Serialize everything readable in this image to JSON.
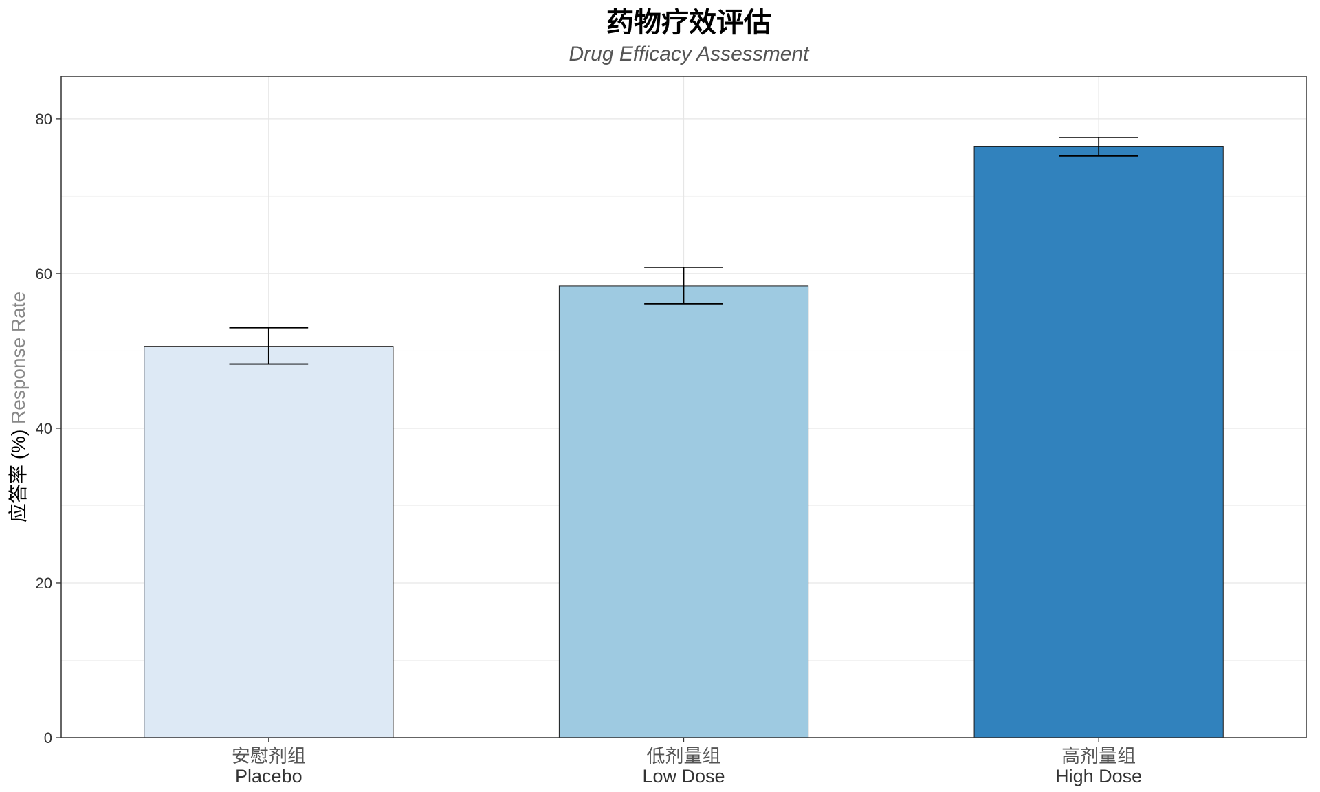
{
  "chart_data": {
    "type": "bar",
    "title": "药物疗效评估",
    "subtitle": "Drug Efficacy Assessment",
    "ylabel": {
      "cn": "应答率",
      "unit": " (%) ",
      "en": "Response Rate"
    },
    "xlabel": "",
    "categories": [
      {
        "cn": "安慰剂组",
        "en": "Placebo"
      },
      {
        "cn": "低剂量组",
        "en": "Low Dose"
      },
      {
        "cn": "高剂量组",
        "en": "High Dose"
      }
    ],
    "values": [
      50.6,
      58.4,
      76.4
    ],
    "errors": [
      {
        "low": 48.3,
        "high": 53.0
      },
      {
        "low": 56.1,
        "high": 60.8
      },
      {
        "low": 75.2,
        "high": 77.6
      }
    ],
    "colors": [
      "#dde9f5",
      "#9ecae1",
      "#3182bd"
    ],
    "ylim": [
      0,
      85.5
    ],
    "yticks": [
      0,
      20,
      40,
      60,
      80
    ],
    "grid": true,
    "legend": "none"
  }
}
